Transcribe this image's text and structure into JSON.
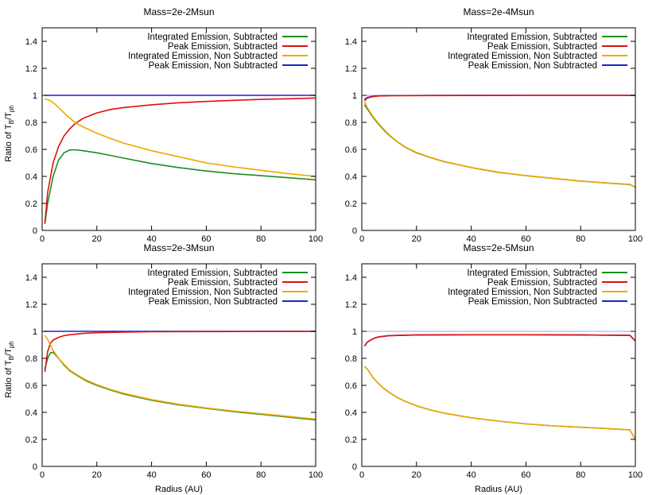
{
  "figure": {
    "ylabel_prefix": "Ratio of T",
    "ylabel_sub1": "B",
    "ylabel_mid": "/T",
    "ylabel_sub2": "ph"
  },
  "chart_data": [
    {
      "type": "line",
      "title": "Mass=2e-2Msun",
      "xlabel": "",
      "xlim": [
        0,
        100
      ],
      "ylim": [
        0,
        1.5
      ],
      "xticks": [
        "0",
        "20",
        "40",
        "60",
        "80",
        "100"
      ],
      "yticks": [
        "0",
        "0.2",
        "0.4",
        "0.6",
        "0.8",
        "1",
        "1.2",
        "1.4"
      ],
      "legend_position": "top-right",
      "series": [
        {
          "name": "Integrated Emission, Subtracted",
          "color": "#1e8c1e",
          "x": [
            1,
            2,
            4,
            6,
            8,
            10,
            12,
            15,
            20,
            25,
            30,
            40,
            50,
            60,
            70,
            80,
            90,
            100
          ],
          "y": [
            0.05,
            0.2,
            0.4,
            0.52,
            0.575,
            0.595,
            0.597,
            0.59,
            0.575,
            0.555,
            0.535,
            0.495,
            0.465,
            0.44,
            0.42,
            0.405,
            0.39,
            0.375
          ]
        },
        {
          "name": "Peak Emission, Subtracted",
          "color": "#e01010",
          "x": [
            1,
            2,
            4,
            6,
            8,
            10,
            12,
            15,
            20,
            25,
            30,
            40,
            50,
            60,
            70,
            80,
            90,
            100
          ],
          "y": [
            0.05,
            0.28,
            0.5,
            0.62,
            0.7,
            0.75,
            0.79,
            0.83,
            0.87,
            0.895,
            0.91,
            0.93,
            0.945,
            0.955,
            0.963,
            0.97,
            0.975,
            0.98
          ]
        },
        {
          "name": "Integrated Emission, Non Subtracted",
          "color": "#f0a800",
          "x": [
            1,
            3,
            5,
            7,
            9,
            12,
            15,
            20,
            25,
            30,
            40,
            50,
            60,
            70,
            80,
            90,
            100
          ],
          "y": [
            0.975,
            0.96,
            0.93,
            0.89,
            0.85,
            0.8,
            0.765,
            0.72,
            0.68,
            0.645,
            0.59,
            0.545,
            0.5,
            0.47,
            0.445,
            0.42,
            0.4
          ]
        },
        {
          "name": "Peak Emission, Non Subtracted",
          "color": "#2020d0",
          "x": [
            1,
            100
          ],
          "y": [
            1.0,
            1.0
          ]
        }
      ],
      "reference_line": {
        "y": 1.0,
        "color": "#9aa4ea"
      }
    },
    {
      "type": "line",
      "title": "Mass=2e-4Msun",
      "xlabel": "",
      "xlim": [
        0,
        100
      ],
      "ylim": [
        0,
        1.5
      ],
      "xticks": [
        "0",
        "20",
        "40",
        "60",
        "80",
        "100"
      ],
      "yticks": [
        "0",
        "0.2",
        "0.4",
        "0.6",
        "0.8",
        "1",
        "1.2",
        "1.4"
      ],
      "legend_position": "top-right",
      "series": [
        {
          "name": "Integrated Emission, Subtracted",
          "color": "#1e8c1e",
          "x": [
            1,
            2,
            4,
            6,
            8,
            10,
            13,
            16,
            20,
            25,
            30,
            40,
            50,
            60,
            70,
            80,
            90,
            98,
            100
          ],
          "y": [
            0.93,
            0.9,
            0.84,
            0.79,
            0.745,
            0.705,
            0.655,
            0.615,
            0.575,
            0.54,
            0.51,
            0.465,
            0.43,
            0.405,
            0.385,
            0.365,
            0.35,
            0.34,
            0.32
          ]
        },
        {
          "name": "Peak Emission, Subtracted",
          "color": "#e01010",
          "x": [
            1,
            2,
            4,
            6,
            10,
            20,
            40,
            60,
            80,
            100
          ],
          "y": [
            0.96,
            0.98,
            0.99,
            0.995,
            0.997,
            0.998,
            0.999,
            1.0,
            1.0,
            1.0
          ]
        },
        {
          "name": "Integrated Emission, Non Subtracted",
          "color": "#f0a800",
          "x": [
            1,
            2,
            4,
            6,
            8,
            10,
            13,
            16,
            20,
            25,
            30,
            40,
            50,
            60,
            70,
            80,
            90,
            98,
            100
          ],
          "y": [
            0.955,
            0.91,
            0.845,
            0.795,
            0.75,
            0.708,
            0.657,
            0.617,
            0.577,
            0.541,
            0.511,
            0.466,
            0.431,
            0.406,
            0.386,
            0.366,
            0.351,
            0.341,
            0.32
          ]
        },
        {
          "name": "Peak Emission, Non Subtracted",
          "color": "#2020d0",
          "x": [
            1,
            2,
            4,
            6,
            10,
            20,
            40,
            60,
            80,
            100
          ],
          "y": [
            0.97,
            0.985,
            0.993,
            0.996,
            0.998,
            0.999,
            1.0,
            1.0,
            1.0,
            1.0
          ]
        }
      ],
      "reference_line": {
        "y": 1.0,
        "color": "#9aa4ea"
      }
    },
    {
      "type": "line",
      "title": "Mass=2e-3Msun",
      "xlabel": "Radius (AU)",
      "xlim": [
        0,
        100
      ],
      "ylim": [
        0,
        1.5
      ],
      "xticks": [
        "0",
        "20",
        "40",
        "60",
        "80",
        "100"
      ],
      "yticks": [
        "0",
        "0.2",
        "0.4",
        "0.6",
        "0.8",
        "1",
        "1.2",
        "1.4"
      ],
      "legend_position": "top-right",
      "series": [
        {
          "name": "Integrated Emission, Subtracted",
          "color": "#1e8c1e",
          "x": [
            1,
            2,
            3,
            4,
            6,
            8,
            10,
            13,
            16,
            20,
            25,
            30,
            40,
            50,
            60,
            70,
            80,
            90,
            100
          ],
          "y": [
            0.72,
            0.8,
            0.84,
            0.845,
            0.8,
            0.75,
            0.71,
            0.67,
            0.635,
            0.6,
            0.565,
            0.535,
            0.49,
            0.455,
            0.43,
            0.405,
            0.385,
            0.365,
            0.345
          ]
        },
        {
          "name": "Peak Emission, Subtracted",
          "color": "#e01010",
          "x": [
            1,
            2,
            3,
            4,
            6,
            8,
            10,
            15,
            20,
            30,
            40,
            60,
            80,
            100
          ],
          "y": [
            0.7,
            0.85,
            0.91,
            0.935,
            0.955,
            0.968,
            0.975,
            0.985,
            0.99,
            0.995,
            0.997,
            0.998,
            0.999,
            1.0
          ]
        },
        {
          "name": "Integrated Emission, Non Subtracted",
          "color": "#f0a800",
          "x": [
            1,
            2,
            4,
            6,
            8,
            10,
            13,
            16,
            20,
            25,
            30,
            40,
            50,
            60,
            70,
            80,
            90,
            100
          ],
          "y": [
            0.97,
            0.94,
            0.86,
            0.8,
            0.755,
            0.715,
            0.675,
            0.64,
            0.605,
            0.57,
            0.54,
            0.495,
            0.46,
            0.433,
            0.41,
            0.39,
            0.37,
            0.35
          ]
        },
        {
          "name": "Peak Emission, Non Subtracted",
          "color": "#2020d0",
          "x": [
            1,
            100
          ],
          "y": [
            1.0,
            1.0
          ]
        }
      ],
      "reference_line": {
        "y": 1.0,
        "color": "#9aa4ea"
      }
    },
    {
      "type": "line",
      "title": "Mass=2e-5Msun",
      "xlabel": "Radius (AU)",
      "xlim": [
        0,
        100
      ],
      "ylim": [
        0,
        1.5
      ],
      "xticks": [
        "0",
        "20",
        "40",
        "60",
        "80",
        "100"
      ],
      "yticks": [
        "0",
        "0.2",
        "0.4",
        "0.6",
        "0.8",
        "1",
        "1.2",
        "1.4"
      ],
      "legend_position": "top-right",
      "series": [
        {
          "name": "Integrated Emission, Subtracted",
          "color": "#1e8c1e",
          "x": [
            1,
            2,
            4,
            6,
            8,
            10,
            13,
            16,
            20,
            25,
            30,
            40,
            50,
            60,
            70,
            80,
            90,
            98,
            100
          ],
          "y": [
            0.74,
            0.72,
            0.66,
            0.615,
            0.578,
            0.548,
            0.51,
            0.48,
            0.448,
            0.418,
            0.395,
            0.36,
            0.335,
            0.315,
            0.3,
            0.29,
            0.28,
            0.27,
            0.2
          ]
        },
        {
          "name": "Peak Emission, Subtracted",
          "color": "#e01010",
          "x": [
            1,
            2,
            4,
            6,
            10,
            20,
            40,
            60,
            80,
            98,
            100
          ],
          "y": [
            0.89,
            0.92,
            0.945,
            0.958,
            0.968,
            0.973,
            0.975,
            0.975,
            0.973,
            0.97,
            0.93
          ]
        },
        {
          "name": "Integrated Emission, Non Subtracted",
          "color": "#f0a800",
          "x": [
            1,
            2,
            4,
            6,
            8,
            10,
            13,
            16,
            20,
            25,
            30,
            40,
            50,
            60,
            70,
            80,
            90,
            98,
            100
          ],
          "y": [
            0.74,
            0.72,
            0.66,
            0.615,
            0.578,
            0.548,
            0.51,
            0.48,
            0.448,
            0.418,
            0.395,
            0.36,
            0.335,
            0.315,
            0.3,
            0.29,
            0.28,
            0.27,
            0.2
          ]
        },
        {
          "name": "Peak Emission, Non Subtracted",
          "color": "#2020d0",
          "x": [
            1,
            2,
            4,
            6,
            10,
            20,
            40,
            60,
            80,
            98,
            100
          ],
          "y": [
            0.89,
            0.92,
            0.945,
            0.958,
            0.968,
            0.973,
            0.975,
            0.975,
            0.973,
            0.97,
            0.93
          ]
        }
      ],
      "reference_line": {
        "y": 1.0,
        "color": "#9aa4ea"
      }
    }
  ]
}
